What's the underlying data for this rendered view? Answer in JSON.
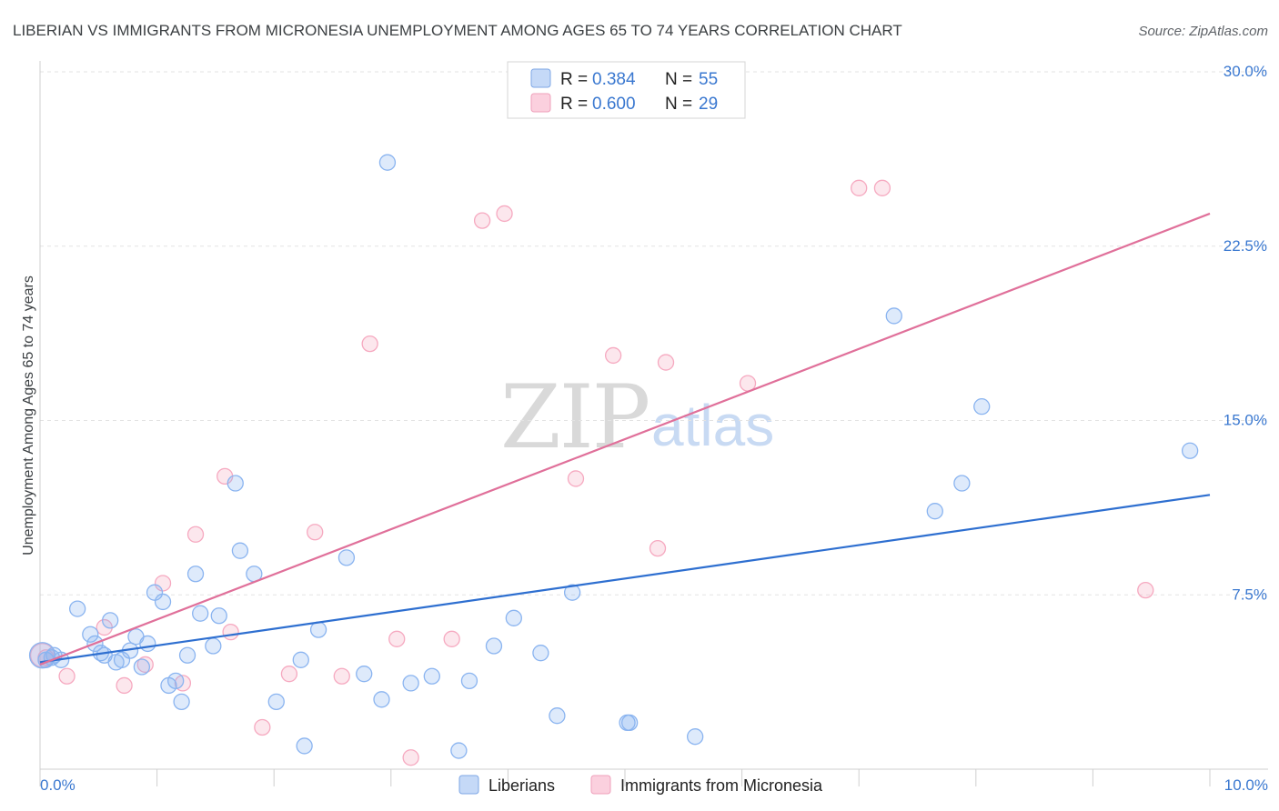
{
  "chart_data": {
    "type": "scatter",
    "title": "LIBERIAN VS IMMIGRANTS FROM MICRONESIA UNEMPLOYMENT AMONG AGES 65 TO 74 YEARS CORRELATION CHART",
    "source": "Source: ZipAtlas.com",
    "xlabel": "",
    "ylabel": "Unemployment Among Ages 65 to 74 years",
    "xlim": [
      0,
      10
    ],
    "ylim": [
      0,
      30
    ],
    "x_tick_labels": {
      "min": "0.0%",
      "max": "10.0%"
    },
    "y_tick_values": [
      7.5,
      15.0,
      22.5,
      30.0
    ],
    "y_tick_labels": [
      "7.5%",
      "15.0%",
      "22.5%",
      "30.0%"
    ],
    "grid": true,
    "legend_position": "top-center",
    "watermark": {
      "part1": "ZIP",
      "part2": "atlas"
    },
    "stats": [
      {
        "r_label": "R =",
        "r_value": "0.384",
        "n_label": "N =",
        "n_value": "55"
      },
      {
        "r_label": "R =",
        "r_value": "0.600",
        "n_label": "N =",
        "n_value": "29"
      }
    ],
    "series": [
      {
        "name": "Liberians",
        "color": "#8ab4f0",
        "line_color": "#2e6fd0",
        "trend": {
          "x": [
            0.0,
            10.0
          ],
          "y": [
            4.6,
            11.8
          ]
        },
        "points": [
          {
            "x": 0.02,
            "y": 4.9,
            "r": 14
          },
          {
            "x": 0.05,
            "y": 4.7
          },
          {
            "x": 0.1,
            "y": 4.8
          },
          {
            "x": 0.12,
            "y": 4.9
          },
          {
            "x": 0.18,
            "y": 4.7
          },
          {
            "x": 0.32,
            "y": 6.9
          },
          {
            "x": 0.43,
            "y": 5.8
          },
          {
            "x": 0.47,
            "y": 5.4
          },
          {
            "x": 0.52,
            "y": 5.0
          },
          {
            "x": 0.55,
            "y": 4.9
          },
          {
            "x": 0.6,
            "y": 6.4
          },
          {
            "x": 0.65,
            "y": 4.6
          },
          {
            "x": 0.7,
            "y": 4.7
          },
          {
            "x": 0.77,
            "y": 5.1
          },
          {
            "x": 0.82,
            "y": 5.7
          },
          {
            "x": 0.87,
            "y": 4.4
          },
          {
            "x": 0.92,
            "y": 5.4
          },
          {
            "x": 0.98,
            "y": 7.6
          },
          {
            "x": 1.05,
            "y": 7.2
          },
          {
            "x": 1.1,
            "y": 3.6
          },
          {
            "x": 1.16,
            "y": 3.8
          },
          {
            "x": 1.21,
            "y": 2.9
          },
          {
            "x": 1.26,
            "y": 4.9
          },
          {
            "x": 1.33,
            "y": 8.4
          },
          {
            "x": 1.37,
            "y": 6.7
          },
          {
            "x": 1.48,
            "y": 5.3
          },
          {
            "x": 1.53,
            "y": 6.6
          },
          {
            "x": 1.67,
            "y": 12.3
          },
          {
            "x": 1.71,
            "y": 9.4
          },
          {
            "x": 1.83,
            "y": 8.4
          },
          {
            "x": 2.02,
            "y": 2.9
          },
          {
            "x": 2.23,
            "y": 4.7
          },
          {
            "x": 2.26,
            "y": 1.0
          },
          {
            "x": 2.38,
            "y": 6.0
          },
          {
            "x": 2.62,
            "y": 9.1
          },
          {
            "x": 2.77,
            "y": 4.1
          },
          {
            "x": 2.92,
            "y": 3.0
          },
          {
            "x": 2.97,
            "y": 26.1
          },
          {
            "x": 3.17,
            "y": 3.7
          },
          {
            "x": 3.35,
            "y": 4.0
          },
          {
            "x": 3.58,
            "y": 0.8
          },
          {
            "x": 3.67,
            "y": 3.8
          },
          {
            "x": 3.88,
            "y": 5.3
          },
          {
            "x": 4.05,
            "y": 6.5
          },
          {
            "x": 4.28,
            "y": 5.0
          },
          {
            "x": 4.42,
            "y": 2.3
          },
          {
            "x": 4.55,
            "y": 7.6
          },
          {
            "x": 5.02,
            "y": 2.0
          },
          {
            "x": 5.04,
            "y": 2.0
          },
          {
            "x": 5.6,
            "y": 1.4
          },
          {
            "x": 7.3,
            "y": 19.5
          },
          {
            "x": 7.65,
            "y": 11.1
          },
          {
            "x": 7.88,
            "y": 12.3
          },
          {
            "x": 8.05,
            "y": 15.6
          },
          {
            "x": 9.83,
            "y": 13.7
          }
        ]
      },
      {
        "name": "Immigrants from Micronesia",
        "color": "#f6a9c0",
        "line_color": "#e0709a",
        "trend": {
          "x": [
            0.0,
            10.0
          ],
          "y": [
            4.5,
            23.9
          ]
        },
        "points": [
          {
            "x": 0.02,
            "y": 4.9,
            "r": 13
          },
          {
            "x": 0.05,
            "y": 4.8
          },
          {
            "x": 0.23,
            "y": 4.0
          },
          {
            "x": 0.55,
            "y": 6.1
          },
          {
            "x": 0.72,
            "y": 3.6
          },
          {
            "x": 0.9,
            "y": 4.5
          },
          {
            "x": 1.05,
            "y": 8.0
          },
          {
            "x": 1.22,
            "y": 3.7
          },
          {
            "x": 1.33,
            "y": 10.1
          },
          {
            "x": 1.58,
            "y": 12.6
          },
          {
            "x": 1.63,
            "y": 5.9
          },
          {
            "x": 1.9,
            "y": 1.8
          },
          {
            "x": 2.13,
            "y": 4.1
          },
          {
            "x": 2.35,
            "y": 10.2
          },
          {
            "x": 2.58,
            "y": 4.0
          },
          {
            "x": 2.82,
            "y": 18.3
          },
          {
            "x": 3.05,
            "y": 5.6
          },
          {
            "x": 3.17,
            "y": 0.5
          },
          {
            "x": 3.52,
            "y": 5.6
          },
          {
            "x": 3.78,
            "y": 23.6
          },
          {
            "x": 3.97,
            "y": 23.9
          },
          {
            "x": 4.58,
            "y": 12.5
          },
          {
            "x": 4.9,
            "y": 17.8
          },
          {
            "x": 5.28,
            "y": 9.5
          },
          {
            "x": 5.35,
            "y": 17.5
          },
          {
            "x": 6.05,
            "y": 16.6
          },
          {
            "x": 7.0,
            "y": 25.0
          },
          {
            "x": 7.2,
            "y": 25.0
          },
          {
            "x": 9.45,
            "y": 7.7
          }
        ]
      }
    ]
  }
}
